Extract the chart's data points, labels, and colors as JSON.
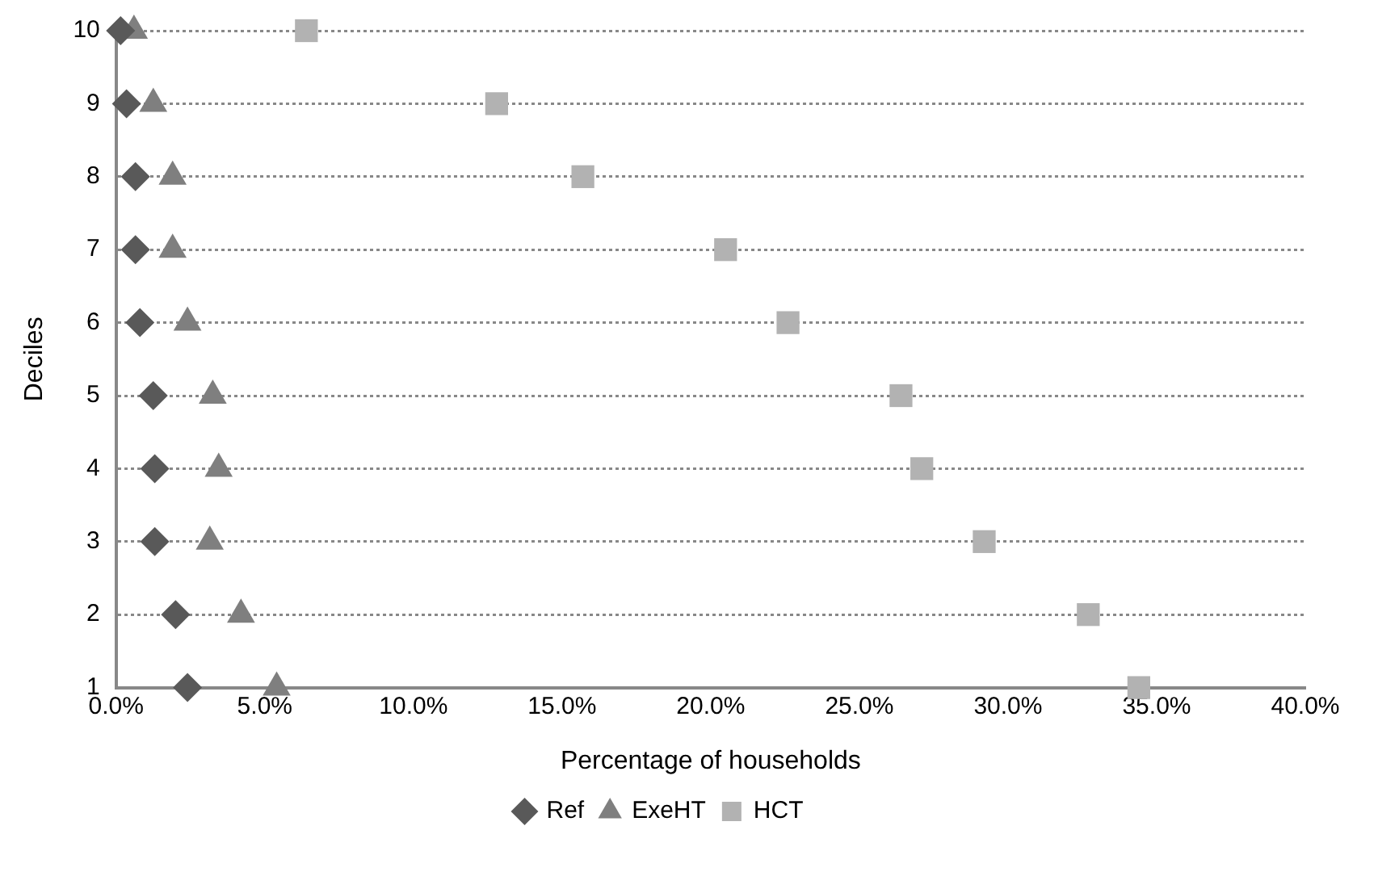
{
  "chart_data": {
    "type": "scatter",
    "xlabel": "Percentage of households",
    "ylabel": "Deciles",
    "series": [
      {
        "name": "Ref",
        "color": "#595959",
        "marker": "diamond",
        "x": [
          2.4,
          2.0,
          1.3,
          1.3,
          1.25,
          0.8,
          0.65,
          0.65,
          0.35,
          0.15
        ],
        "values": [
          1,
          2,
          3,
          4,
          5,
          6,
          7,
          8,
          9,
          10
        ]
      },
      {
        "name": "ExeHT",
        "color": "#7f7f7f",
        "marker": "triangle",
        "x": [
          5.4,
          4.2,
          3.15,
          3.45,
          3.25,
          2.4,
          1.9,
          1.9,
          1.25,
          0.6
        ],
        "values": [
          1,
          2,
          3,
          4,
          5,
          6,
          7,
          8,
          9,
          10
        ]
      },
      {
        "name": "HCT",
        "color": "#b2b2b2",
        "marker": "square",
        "x": [
          34.4,
          32.7,
          29.2,
          27.1,
          26.4,
          22.6,
          20.5,
          15.7,
          12.8,
          6.4
        ],
        "values": [
          1,
          2,
          3,
          4,
          5,
          6,
          7,
          8,
          9,
          10
        ]
      }
    ],
    "xlim": [
      0,
      40
    ],
    "xticks": [
      {
        "value": 0,
        "label": "0.0%"
      },
      {
        "value": 5,
        "label": "5.0%"
      },
      {
        "value": 10,
        "label": "10.0%"
      },
      {
        "value": 15,
        "label": "15.0%"
      },
      {
        "value": 20,
        "label": "20.0%"
      },
      {
        "value": 25,
        "label": "25.0%"
      },
      {
        "value": 30,
        "label": "30.0%"
      },
      {
        "value": 35,
        "label": "35.0%"
      },
      {
        "value": 40,
        "label": "40.0%"
      }
    ],
    "ylim": [
      1,
      10
    ],
    "yticks": [
      1,
      2,
      3,
      4,
      5,
      6,
      7,
      8,
      9,
      10
    ],
    "grid": "y",
    "legend": "bottom"
  }
}
